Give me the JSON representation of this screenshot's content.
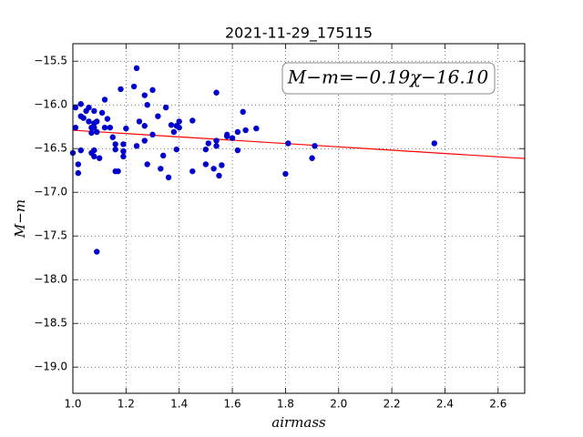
{
  "chart_data": {
    "type": "scatter",
    "title": "2021-11-29_175115",
    "xlabel": "airmass",
    "ylabel": "M−m",
    "annotation": "M−m=−0.19χ−16.10",
    "x": [
      1.0,
      1.01,
      1.01,
      1.02,
      1.02,
      1.03,
      1.03,
      1.03,
      1.04,
      1.05,
      1.06,
      1.06,
      1.07,
      1.07,
      1.07,
      1.08,
      1.08,
      1.08,
      1.08,
      1.08,
      1.09,
      1.09,
      1.09,
      1.1,
      1.11,
      1.12,
      1.12,
      1.13,
      1.14,
      1.15,
      1.16,
      1.16,
      1.16,
      1.17,
      1.18,
      1.19,
      1.19,
      1.19,
      1.2,
      1.23,
      1.24,
      1.24,
      1.25,
      1.27,
      1.27,
      1.27,
      1.28,
      1.28,
      1.3,
      1.3,
      1.32,
      1.33,
      1.34,
      1.35,
      1.36,
      1.37,
      1.38,
      1.39,
      1.39,
      1.4,
      1.4,
      1.45,
      1.45,
      1.5,
      1.5,
      1.51,
      1.53,
      1.54,
      1.54,
      1.54,
      1.55,
      1.56,
      1.58,
      1.58,
      1.6,
      1.62,
      1.62,
      1.64,
      1.65,
      1.69,
      1.8,
      1.81,
      1.9,
      1.91,
      2.36
    ],
    "values": [
      -16.55,
      -16.03,
      -16.26,
      -16.68,
      -16.78,
      -16.52,
      -15.99,
      -16.13,
      -16.15,
      -16.07,
      -16.03,
      -16.19,
      -16.26,
      -16.32,
      -16.55,
      -16.52,
      -16.59,
      -16.07,
      -16.21,
      -16.26,
      -16.19,
      -16.31,
      -17.68,
      -16.61,
      -16.09,
      -15.94,
      -16.26,
      -16.16,
      -16.26,
      -16.37,
      -16.51,
      -16.45,
      -16.76,
      -16.76,
      -15.82,
      -16.53,
      -16.59,
      -16.45,
      -16.27,
      -15.79,
      -16.47,
      -15.58,
      -16.19,
      -16.41,
      -16.24,
      -15.89,
      -16.0,
      -16.68,
      -15.83,
      -16.34,
      -16.13,
      -16.73,
      -16.58,
      -16.03,
      -16.83,
      -16.23,
      -16.31,
      -16.24,
      -16.51,
      -16.26,
      -16.19,
      -16.18,
      -16.76,
      -16.51,
      -16.68,
      -16.44,
      -16.73,
      -15.86,
      -16.47,
      -16.41,
      -16.81,
      -16.69,
      -16.34,
      -16.36,
      -16.38,
      -16.31,
      -16.52,
      -16.08,
      -16.29,
      -16.27,
      -16.79,
      -16.44,
      -16.61,
      -16.47,
      -16.44
    ],
    "color": "#0000cc",
    "fit": {
      "slope": -0.19,
      "intercept": -16.1,
      "color": "#ff0000"
    },
    "xlim": [
      1.0,
      2.7
    ],
    "ylim": [
      -19.3,
      -15.3
    ],
    "xticks": [
      {
        "value": 1.0,
        "label": "1.0"
      },
      {
        "value": 1.2,
        "label": "1.2"
      },
      {
        "value": 1.4,
        "label": "1.4"
      },
      {
        "value": 1.6,
        "label": "1.6"
      },
      {
        "value": 1.8,
        "label": "1.8"
      },
      {
        "value": 2.0,
        "label": "2.0"
      },
      {
        "value": 2.2,
        "label": "2.2"
      },
      {
        "value": 2.4,
        "label": "2.4"
      },
      {
        "value": 2.6,
        "label": "2.6"
      }
    ],
    "yticks": [
      {
        "value": -15.5,
        "label": "−15.5"
      },
      {
        "value": -16.0,
        "label": "−16.0"
      },
      {
        "value": -16.5,
        "label": "−16.5"
      },
      {
        "value": -17.0,
        "label": "−17.0"
      },
      {
        "value": -17.5,
        "label": "−17.5"
      },
      {
        "value": -18.0,
        "label": "−18.0"
      },
      {
        "value": -18.5,
        "label": "−18.5"
      },
      {
        "value": -19.0,
        "label": "−19.0"
      }
    ],
    "grid": true
  }
}
